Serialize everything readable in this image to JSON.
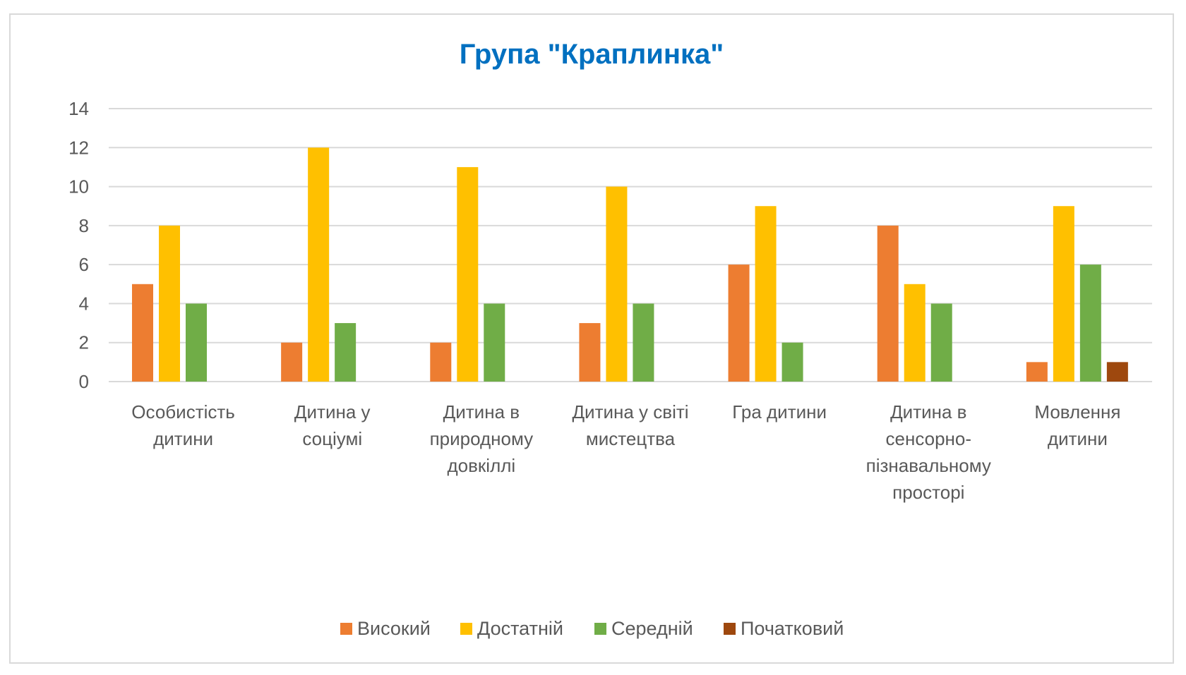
{
  "chart_data": {
    "type": "bar",
    "title": "Група \"Краплинка\"",
    "xlabel": "",
    "ylabel": "",
    "ylim": [
      0,
      14
    ],
    "yticks": [
      0,
      2,
      4,
      6,
      8,
      10,
      12,
      14
    ],
    "grid": true,
    "legend_position": "bottom",
    "categories": [
      [
        "Особистість",
        "дитини"
      ],
      [
        "Дитина у",
        "соціумі"
      ],
      [
        "Дитина в",
        "природному",
        "довкіллі"
      ],
      [
        "Дитина у світі",
        "мистецтва"
      ],
      [
        "Гра дитини"
      ],
      [
        "Дитина в",
        "сенсорно-",
        "пізнавальному",
        "просторі"
      ],
      [
        "Мовлення",
        "дитини"
      ]
    ],
    "series": [
      {
        "name": "Високий",
        "color": "#ed7d31",
        "values": [
          5,
          2,
          2,
          3,
          6,
          8,
          1
        ]
      },
      {
        "name": "Достатній",
        "color": "#ffc000",
        "values": [
          8,
          12,
          11,
          10,
          9,
          5,
          9
        ]
      },
      {
        "name": "Середній",
        "color": "#70ad47",
        "values": [
          4,
          3,
          4,
          4,
          2,
          4,
          6
        ]
      },
      {
        "name": "Початковий",
        "color": "#9e480e",
        "values": [
          0,
          0,
          0,
          0,
          0,
          0,
          1
        ]
      }
    ],
    "title_color": "#0070c0"
  }
}
